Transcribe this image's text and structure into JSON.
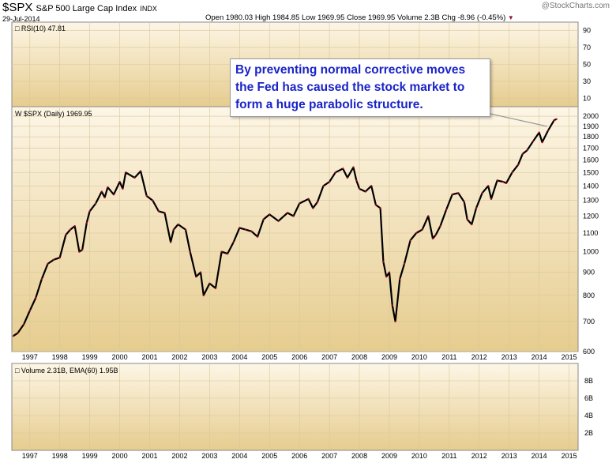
{
  "header": {
    "symbol": "$SPX",
    "name": "S&P 500 Large Cap Index",
    "exchange": "INDX",
    "date": "29-Jul-2014",
    "watermark": "@StockCharts.com",
    "quote": "Open 1980.03  High 1984.85  Low 1969.95  Close 1969.95  Volume 2.3B  Chg -8.96 (-0.45%)",
    "down_marker_color": "#8b1a3a"
  },
  "annotation": {
    "lines": [
      "By preventing normal corrective moves",
      "the Fed has caused the stock market to",
      "form a huge parabolic structure."
    ],
    "color": "#1a23c8"
  },
  "chart_data": [
    {
      "panel": "rsi",
      "type": "line",
      "label": "RSI(10) 47.81",
      "ylim": [
        0,
        100
      ],
      "y_ticks": [
        10,
        30,
        50,
        70,
        90
      ],
      "series": []
    },
    {
      "panel": "price",
      "type": "line",
      "label": "$SPX (Daily) 1969.95",
      "yscale": "log",
      "ylim": [
        600,
        2100
      ],
      "y_ticks": [
        600,
        700,
        800,
        900,
        1000,
        1100,
        1200,
        1300,
        1400,
        1500,
        1600,
        1700,
        1800,
        1900,
        2000
      ],
      "x_ticks": [
        "1997",
        "1998",
        "1999",
        "2000",
        "2001",
        "2002",
        "2003",
        "2004",
        "2005",
        "2006",
        "2007",
        "2008",
        "2009",
        "2010",
        "2011",
        "2012",
        "2013",
        "2014",
        "2015"
      ],
      "xlim": [
        1996.4,
        2015.3
      ],
      "series": [
        {
          "x": [
            1996.45,
            1996.6,
            1996.8,
            1997.0,
            1997.2,
            1997.4,
            1997.6,
            1997.8,
            1998.0,
            1998.2,
            1998.35,
            1998.5,
            1998.65,
            1998.75,
            1998.9,
            1999.0,
            1999.2,
            1999.4,
            1999.5,
            1999.6,
            1999.8,
            2000.0,
            2000.1,
            2000.2,
            2000.5,
            2000.7,
            2000.9,
            2001.1,
            2001.3,
            2001.5,
            2001.7,
            2001.8,
            2001.95,
            2002.2,
            2002.35,
            2002.55,
            2002.7,
            2002.8,
            2003.0,
            2003.2,
            2003.4,
            2003.6,
            2003.8,
            2004.0,
            2004.2,
            2004.4,
            2004.6,
            2004.8,
            2005.0,
            2005.3,
            2005.6,
            2005.8,
            2006.0,
            2006.3,
            2006.45,
            2006.6,
            2006.8,
            2007.0,
            2007.2,
            2007.45,
            2007.6,
            2007.8,
            2007.9,
            2008.0,
            2008.2,
            2008.4,
            2008.55,
            2008.7,
            2008.8,
            2008.9,
            2009.0,
            2009.1,
            2009.2,
            2009.35,
            2009.5,
            2009.7,
            2009.9,
            2010.1,
            2010.3,
            2010.45,
            2010.55,
            2010.7,
            2010.9,
            2011.1,
            2011.3,
            2011.5,
            2011.6,
            2011.75,
            2011.9,
            2012.1,
            2012.3,
            2012.4,
            2012.6,
            2012.8,
            2012.9,
            2013.1,
            2013.3,
            2013.45,
            2013.6,
            2013.8,
            2014.0,
            2014.1,
            2014.3,
            2014.5,
            2014.58
          ],
          "y": [
            650,
            660,
            690,
            740,
            790,
            870,
            940,
            960,
            970,
            1090,
            1120,
            1140,
            1000,
            1010,
            1160,
            1230,
            1280,
            1360,
            1320,
            1390,
            1340,
            1430,
            1380,
            1500,
            1460,
            1510,
            1330,
            1300,
            1230,
            1220,
            1050,
            1120,
            1150,
            1120,
            1000,
            880,
            900,
            800,
            850,
            830,
            1000,
            990,
            1050,
            1130,
            1120,
            1110,
            1080,
            1180,
            1210,
            1170,
            1220,
            1200,
            1280,
            1310,
            1250,
            1290,
            1400,
            1430,
            1500,
            1530,
            1460,
            1540,
            1440,
            1380,
            1360,
            1400,
            1270,
            1250,
            950,
            880,
            900,
            760,
            700,
            870,
            940,
            1060,
            1100,
            1120,
            1200,
            1070,
            1090,
            1140,
            1240,
            1340,
            1350,
            1290,
            1180,
            1150,
            1250,
            1350,
            1400,
            1310,
            1440,
            1430,
            1420,
            1500,
            1560,
            1650,
            1680,
            1760,
            1840,
            1750,
            1860,
            1960,
            1970
          ]
        }
      ]
    },
    {
      "panel": "volume",
      "type": "bar",
      "label": "Volume 2.31B, EMA(60) 1.95B",
      "y_ticks": [
        "2B",
        "4B",
        "6B",
        "8B"
      ],
      "x_ticks": [
        "1997",
        "1998",
        "1999",
        "2000",
        "2001",
        "2002",
        "2003",
        "2004",
        "2005",
        "2006",
        "2007",
        "2008",
        "2009",
        "2010",
        "2011",
        "2012",
        "2013",
        "2014",
        "2015"
      ],
      "series": []
    }
  ]
}
